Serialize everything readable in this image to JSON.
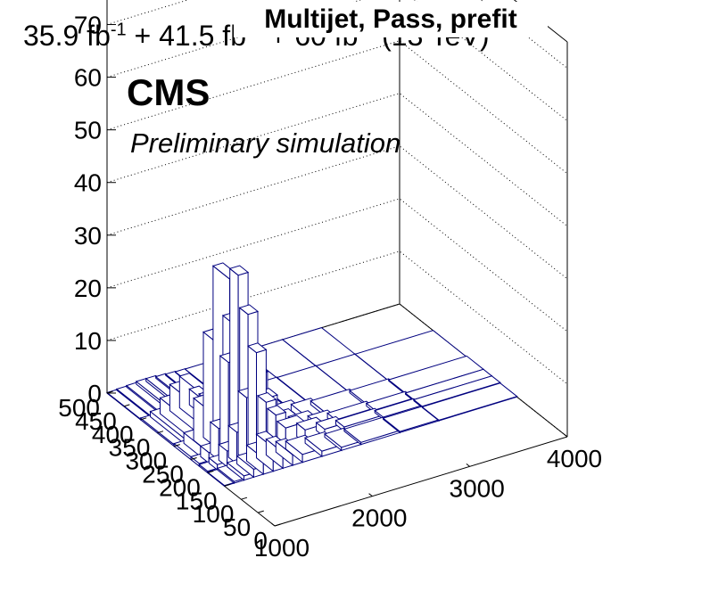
{
  "header": {
    "lumi_parts": [
      "35.9 fb",
      "-1",
      " + 41.5 fb",
      "-1",
      " + 60 fb",
      "-1",
      " (13 TeV)"
    ],
    "title": "Multijet, Pass, prefit",
    "experiment": "CMS",
    "status": "Preliminary simulation"
  },
  "chart_data": {
    "type": "lego",
    "title": "Multijet, Pass, prefit",
    "xlabel": "",
    "ylabel": "",
    "zlabel": "",
    "x_range": [
      1000,
      4000
    ],
    "y_range": [
      0,
      500
    ],
    "z_range": [
      0,
      75
    ],
    "x_ticks": [
      1000,
      2000,
      3000,
      4000
    ],
    "y_ticks": [
      0,
      50,
      100,
      150,
      200,
      250,
      300,
      350,
      400,
      450,
      500
    ],
    "z_ticks": [
      0,
      10,
      20,
      30,
      40,
      50,
      60,
      70
    ],
    "grid": true,
    "colors": {
      "bar_fill": "#ffffff",
      "bar_edge": "#00007f",
      "axis": "#000000",
      "grid": "#000000"
    },
    "x_bins": [
      1000,
      1100,
      1200,
      1300,
      1400,
      1500,
      1600,
      1700,
      1800,
      2000,
      2200,
      2400,
      2800,
      3200,
      4000
    ],
    "y_bins": [
      0,
      150,
      200,
      225,
      250,
      300,
      400,
      500
    ],
    "values": [
      [
        0,
        0,
        0,
        0,
        0,
        0,
        0,
        0,
        0,
        0,
        0,
        0,
        0,
        0
      ],
      [
        0.1,
        0.3,
        0.8,
        1.5,
        3.0,
        4.5,
        3.0,
        2.0,
        1.5,
        1.0,
        0.6,
        0.4,
        0.2,
        0.1
      ],
      [
        0.3,
        1.0,
        3.0,
        6.0,
        12.0,
        20.0,
        10.0,
        7.0,
        4.0,
        2.5,
        1.5,
        0.8,
        0.4,
        0.2
      ],
      [
        0.5,
        2.0,
        6.0,
        18.0,
        34.0,
        26.0,
        14.0,
        9.0,
        4.0,
        2.5,
        1.5,
        0.9,
        0.5,
        0.2
      ],
      [
        0.5,
        2.0,
        8.0,
        20.0,
        32.0,
        22.0,
        12.0,
        7.0,
        3.0,
        2.0,
        1.2,
        0.7,
        0.4,
        0.2
      ],
      [
        0.3,
        1.0,
        3.0,
        5.0,
        6.0,
        3.0,
        1.5,
        1.0,
        0.5,
        0.3,
        0.2,
        0.1,
        0.05,
        0.02
      ],
      [
        0.1,
        0.2,
        0.3,
        0.5,
        0.5,
        0.3,
        0.2,
        0.1,
        0.05,
        0.03,
        0.02,
        0.01,
        0.01,
        0.0
      ]
    ]
  }
}
